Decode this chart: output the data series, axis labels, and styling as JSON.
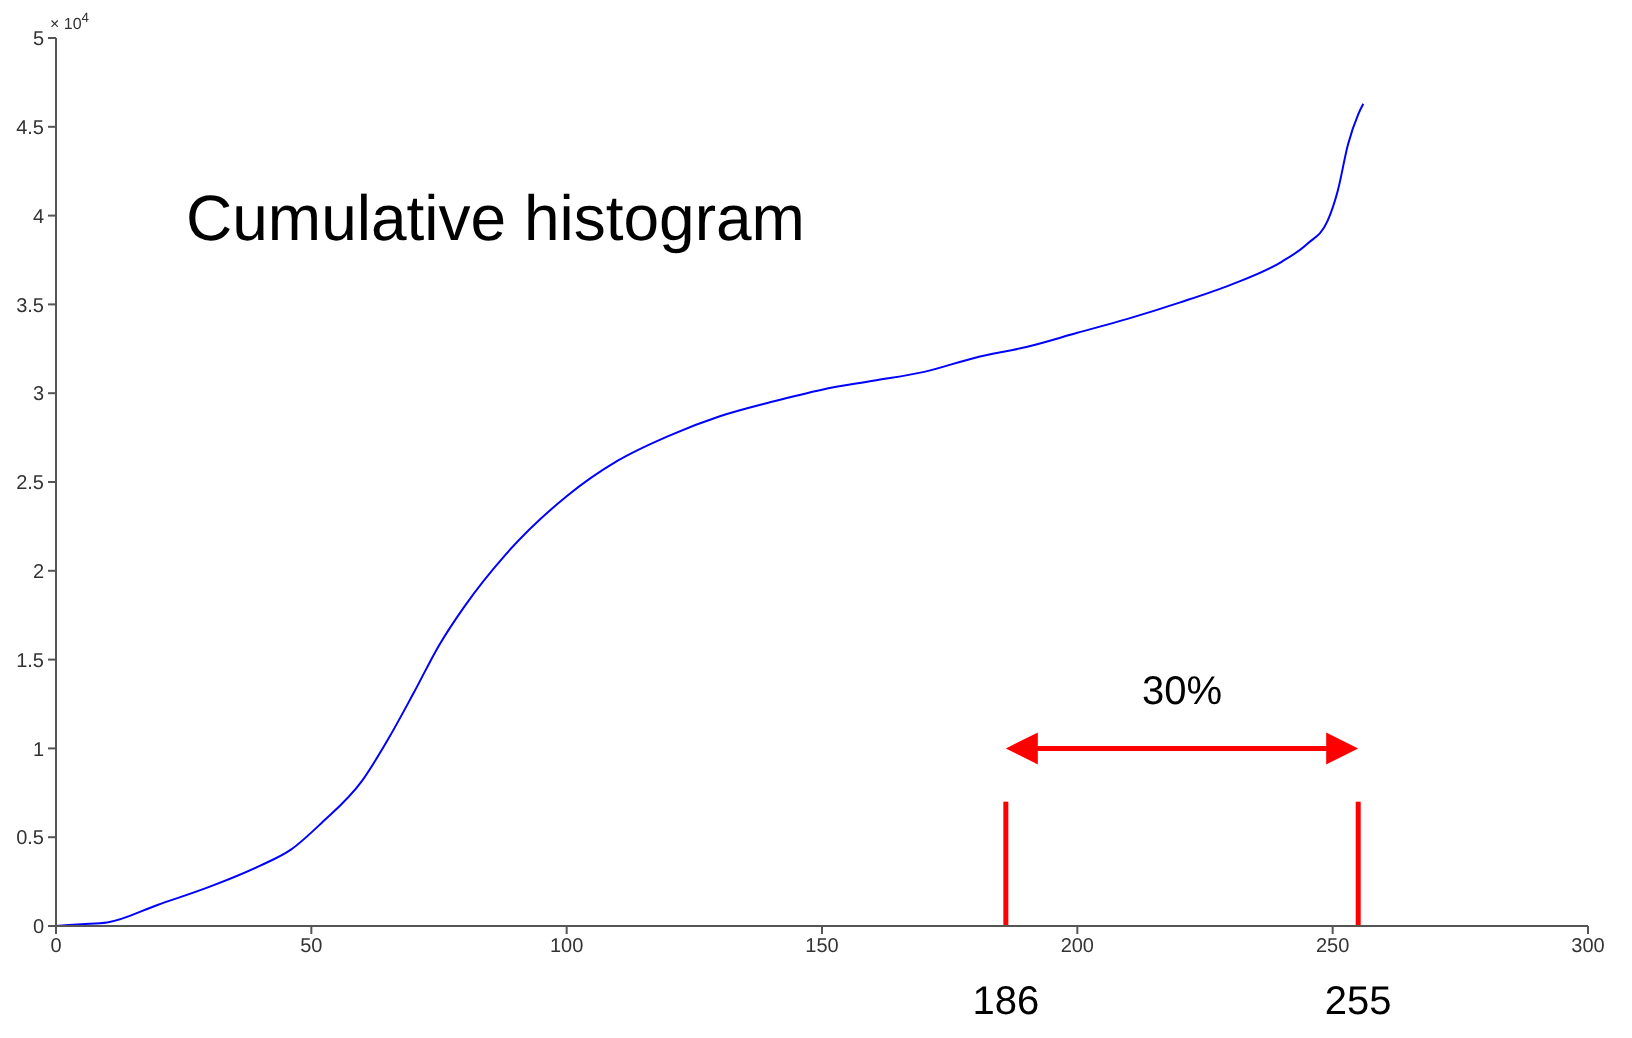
{
  "chart_data": {
    "type": "line",
    "title": "Cumulative histogram",
    "x": [
      0,
      5,
      10,
      20,
      30,
      40,
      46,
      52,
      60,
      65,
      70,
      75,
      80,
      88,
      100,
      110,
      120,
      130,
      140,
      150,
      160,
      170,
      180,
      190,
      200,
      210,
      220,
      230,
      240,
      245,
      249,
      251,
      253,
      255,
      256
    ],
    "series": [
      {
        "color": "#0000ff",
        "values": [
          0,
          0.01,
          0.02,
          0.12,
          0.22,
          0.34,
          0.43,
          0.58,
          0.82,
          1.05,
          1.31,
          1.58,
          1.8,
          2.09,
          2.42,
          2.62,
          2.76,
          2.87,
          2.95,
          3.02,
          3.07,
          3.12,
          3.2,
          3.26,
          3.34,
          3.42,
          3.51,
          3.61,
          3.74,
          3.84,
          3.97,
          4.14,
          4.4,
          4.57,
          4.63
        ]
      }
    ],
    "xlim": [
      0,
      300
    ],
    "xticks": [
      0,
      50,
      100,
      150,
      200,
      250,
      300
    ],
    "ylim": [
      0,
      5
    ],
    "yticks": [
      0,
      0.5,
      1,
      1.5,
      2,
      2.5,
      3,
      3.5,
      4,
      4.5,
      5
    ],
    "ref_lines": [
      {
        "axis": "x",
        "value": 186,
        "label": "186",
        "color": "#ff0000"
      },
      {
        "axis": "x",
        "value": 255,
        "label": "255",
        "color": "#ff0000"
      }
    ],
    "annotations": [
      "× 10$^{4}$",
      "30%"
    ],
    "grid": false,
    "legend": false,
    "marker": "none",
    "line_style": "solid"
  }
}
